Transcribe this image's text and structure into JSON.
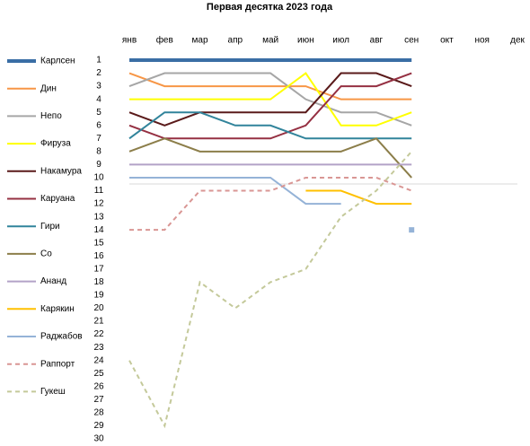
{
  "chart_data": {
    "type": "line",
    "title": "Первая десятка 2023 года",
    "categories": [
      "янв",
      "фев",
      "мар",
      "апр",
      "май",
      "июн",
      "июл",
      "авг",
      "сен",
      "окт",
      "ноя",
      "дек"
    ],
    "ylim": [
      1,
      30
    ],
    "y_inverted": true,
    "yticks": [
      1,
      2,
      3,
      4,
      5,
      6,
      7,
      8,
      9,
      10,
      11,
      12,
      13,
      14,
      15,
      16,
      17,
      18,
      19,
      20,
      21,
      22,
      23,
      24,
      25,
      26,
      27,
      28,
      29,
      30
    ],
    "legend": "left",
    "series": [
      {
        "name": "Карлсен",
        "color": "#3a6ea5",
        "width": 4,
        "values": [
          1,
          1,
          1,
          1,
          1,
          1,
          1,
          1,
          1,
          null,
          null,
          null
        ]
      },
      {
        "name": "Дин",
        "color": "#f79646",
        "values": [
          2,
          3,
          3,
          3,
          3,
          3,
          4,
          4,
          4,
          null,
          null,
          null
        ]
      },
      {
        "name": "Непо",
        "color": "#a6a6a6",
        "values": [
          3,
          2,
          2,
          2,
          2,
          4,
          5,
          5,
          6,
          null,
          null,
          null
        ]
      },
      {
        "name": "Фируза",
        "color": "#ffff00",
        "values": [
          4,
          4,
          4,
          4,
          4,
          2,
          6,
          6,
          5,
          null,
          null,
          null
        ]
      },
      {
        "name": "Накамура",
        "color": "#5a1a1a",
        "values": [
          5,
          6,
          5,
          5,
          5,
          5,
          2,
          2,
          3,
          null,
          null,
          null
        ]
      },
      {
        "name": "Каруана",
        "color": "#953042",
        "values": [
          6,
          7,
          7,
          7,
          7,
          6,
          3,
          3,
          2,
          null,
          null,
          null
        ]
      },
      {
        "name": "Гири",
        "color": "#31849b",
        "values": [
          7,
          5,
          5,
          6,
          6,
          7,
          7,
          7,
          7,
          null,
          null,
          null
        ]
      },
      {
        "name": "Со",
        "color": "#8c7e4a",
        "values": [
          8,
          7,
          8,
          8,
          8,
          8,
          8,
          7,
          10,
          null,
          null,
          null
        ]
      },
      {
        "name": "Ананд",
        "color": "#b3a2c7",
        "values": [
          9,
          9,
          9,
          9,
          9,
          9,
          9,
          9,
          9,
          null,
          null,
          null
        ]
      },
      {
        "name": "Карякин",
        "color": "#ffc000",
        "values": [
          10,
          10,
          null,
          null,
          null,
          11,
          11,
          12,
          12,
          null,
          null,
          null
        ]
      },
      {
        "name": "Раджабов",
        "color": "#95b3d7",
        "values": [
          10,
          10,
          10,
          10,
          10,
          12,
          12,
          null,
          14,
          null,
          null,
          null
        ]
      },
      {
        "name": "Раппорт",
        "color": "#d99694",
        "dashed": true,
        "values": [
          14,
          14,
          11,
          11,
          11,
          10,
          10,
          10,
          11,
          null,
          null,
          null
        ]
      },
      {
        "name": "Гукеш",
        "color": "#c4c99a",
        "dashed": true,
        "values": [
          24,
          29,
          18,
          20,
          18,
          17,
          13,
          11,
          8,
          null,
          null,
          null
        ]
      }
    ]
  }
}
